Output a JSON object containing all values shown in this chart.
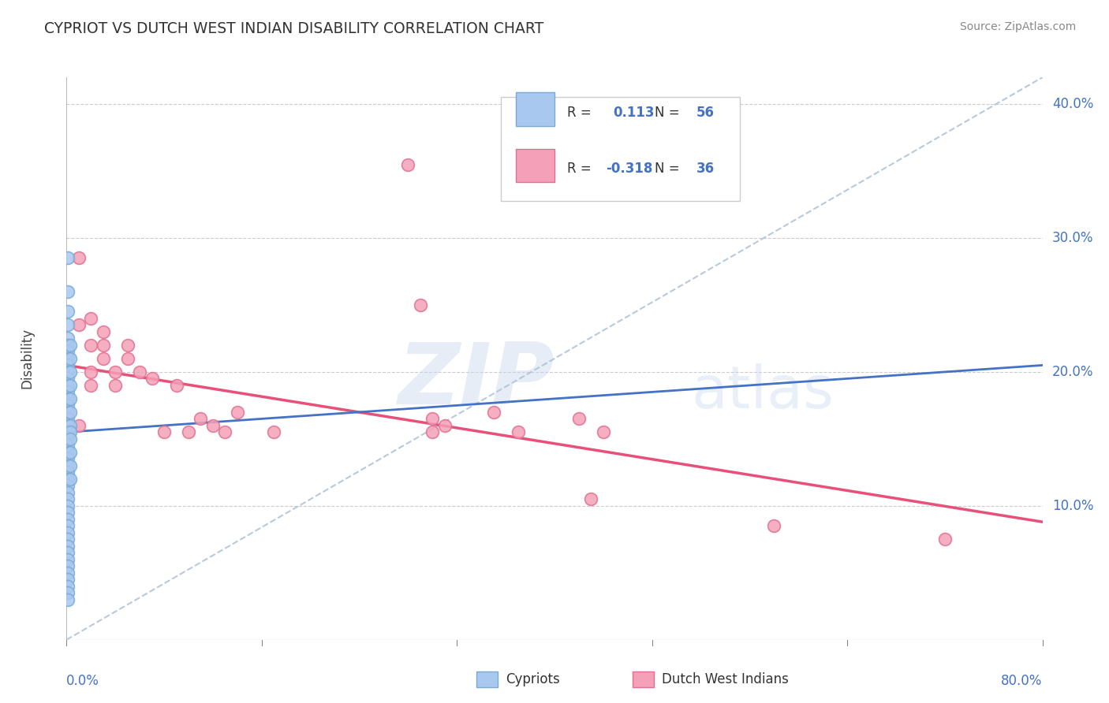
{
  "title": "CYPRIOT VS DUTCH WEST INDIAN DISABILITY CORRELATION CHART",
  "source": "Source: ZipAtlas.com",
  "ylabel": "Disability",
  "xlim": [
    0.0,
    0.8
  ],
  "ylim": [
    0.0,
    0.42
  ],
  "yticks": [
    0.1,
    0.2,
    0.3,
    0.4
  ],
  "ytick_labels": [
    "10.0%",
    "20.0%",
    "30.0%",
    "40.0%"
  ],
  "grid_color": "#cccccc",
  "cypriot_color": "#A8C8F0",
  "dutch_color": "#F4A0B8",
  "cypriot_edge_color": "#7aaad4",
  "dutch_edge_color": "#e07090",
  "cypriot_line_color": "#4472C4",
  "dutch_line_color": "#E8507A",
  "diag_line_color": "#B0C4D8",
  "cypriot_points": [
    [
      0.001,
      0.285
    ],
    [
      0.001,
      0.26
    ],
    [
      0.001,
      0.245
    ],
    [
      0.001,
      0.235
    ],
    [
      0.001,
      0.225
    ],
    [
      0.001,
      0.22
    ],
    [
      0.001,
      0.215
    ],
    [
      0.001,
      0.21
    ],
    [
      0.001,
      0.205
    ],
    [
      0.001,
      0.2
    ],
    [
      0.001,
      0.195
    ],
    [
      0.001,
      0.19
    ],
    [
      0.001,
      0.185
    ],
    [
      0.001,
      0.18
    ],
    [
      0.001,
      0.175
    ],
    [
      0.001,
      0.17
    ],
    [
      0.001,
      0.165
    ],
    [
      0.001,
      0.16
    ],
    [
      0.001,
      0.155
    ],
    [
      0.001,
      0.15
    ],
    [
      0.001,
      0.145
    ],
    [
      0.001,
      0.14
    ],
    [
      0.001,
      0.135
    ],
    [
      0.001,
      0.13
    ],
    [
      0.001,
      0.125
    ],
    [
      0.001,
      0.12
    ],
    [
      0.001,
      0.115
    ],
    [
      0.001,
      0.11
    ],
    [
      0.001,
      0.105
    ],
    [
      0.001,
      0.1
    ],
    [
      0.001,
      0.095
    ],
    [
      0.001,
      0.09
    ],
    [
      0.001,
      0.085
    ],
    [
      0.001,
      0.08
    ],
    [
      0.001,
      0.075
    ],
    [
      0.001,
      0.07
    ],
    [
      0.001,
      0.065
    ],
    [
      0.001,
      0.06
    ],
    [
      0.001,
      0.055
    ],
    [
      0.001,
      0.05
    ],
    [
      0.001,
      0.045
    ],
    [
      0.001,
      0.04
    ],
    [
      0.001,
      0.035
    ],
    [
      0.001,
      0.03
    ],
    [
      0.003,
      0.22
    ],
    [
      0.003,
      0.21
    ],
    [
      0.003,
      0.2
    ],
    [
      0.003,
      0.19
    ],
    [
      0.003,
      0.18
    ],
    [
      0.003,
      0.17
    ],
    [
      0.003,
      0.16
    ],
    [
      0.003,
      0.155
    ],
    [
      0.003,
      0.15
    ],
    [
      0.003,
      0.14
    ],
    [
      0.003,
      0.13
    ],
    [
      0.003,
      0.12
    ]
  ],
  "dutch_points": [
    [
      0.01,
      0.285
    ],
    [
      0.01,
      0.235
    ],
    [
      0.02,
      0.24
    ],
    [
      0.02,
      0.22
    ],
    [
      0.02,
      0.2
    ],
    [
      0.02,
      0.19
    ],
    [
      0.03,
      0.23
    ],
    [
      0.03,
      0.22
    ],
    [
      0.03,
      0.21
    ],
    [
      0.04,
      0.2
    ],
    [
      0.04,
      0.19
    ],
    [
      0.05,
      0.22
    ],
    [
      0.05,
      0.21
    ],
    [
      0.06,
      0.2
    ],
    [
      0.07,
      0.195
    ],
    [
      0.08,
      0.155
    ],
    [
      0.09,
      0.19
    ],
    [
      0.1,
      0.155
    ],
    [
      0.11,
      0.165
    ],
    [
      0.12,
      0.16
    ],
    [
      0.13,
      0.155
    ],
    [
      0.14,
      0.17
    ],
    [
      0.17,
      0.155
    ],
    [
      0.29,
      0.25
    ],
    [
      0.3,
      0.155
    ],
    [
      0.3,
      0.165
    ],
    [
      0.31,
      0.16
    ],
    [
      0.35,
      0.17
    ],
    [
      0.37,
      0.155
    ],
    [
      0.42,
      0.165
    ],
    [
      0.43,
      0.105
    ],
    [
      0.44,
      0.155
    ],
    [
      0.28,
      0.355
    ],
    [
      0.58,
      0.085
    ],
    [
      0.72,
      0.075
    ],
    [
      0.01,
      0.16
    ]
  ],
  "cypriot_trend_x": [
    0.0,
    0.8
  ],
  "cypriot_trend_y": [
    0.155,
    0.205
  ],
  "dutch_trend_x": [
    0.0,
    0.8
  ],
  "dutch_trend_y": [
    0.205,
    0.088
  ],
  "diag_trend_x": [
    0.0,
    0.8
  ],
  "diag_trend_y": [
    0.0,
    0.42
  ]
}
